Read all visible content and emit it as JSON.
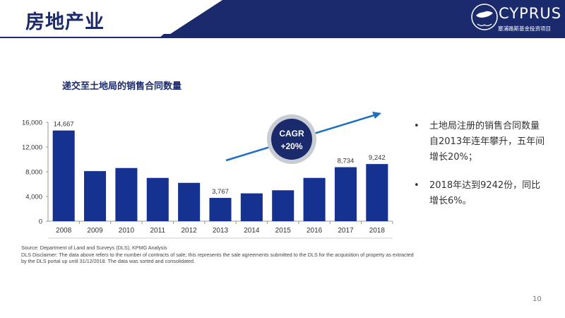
{
  "header": {
    "title": "房地产业",
    "logo_text": "CYPRUS",
    "logo_sub": "塞浦路斯基金投资项目"
  },
  "colors": {
    "bar": "#163291",
    "navy": "#1a2a6c",
    "arrow": "#1f6fbf"
  },
  "chart_title": "递交至土地局的销售合同数量",
  "chart_data": {
    "type": "bar",
    "categories": [
      "2008",
      "2009",
      "2010",
      "2011",
      "2012",
      "2013",
      "2014",
      "2015",
      "2016",
      "2017",
      "2018"
    ],
    "values": [
      14667,
      8100,
      8600,
      7000,
      6200,
      3767,
      4500,
      5000,
      7000,
      8734,
      9242
    ],
    "labels": [
      "14,667",
      "",
      "",
      "",
      "",
      "3,767",
      "",
      "",
      "",
      "8,734",
      "9,242"
    ],
    "ylim": [
      0,
      16000
    ],
    "yticks": [
      "0",
      "4,000",
      "8,000",
      "12,000",
      "16,000"
    ],
    "ytick_values": [
      0,
      4000,
      8000,
      12000,
      16000
    ],
    "grid": false,
    "annotation": {
      "line1": "CAGR",
      "line2": "+20%"
    }
  },
  "bullets": [
    "土地局注册的销售合同数量自2013年连年攀升，五年间增长20%；",
    "2018年达到9242份，同比增长6%。"
  ],
  "bullet_symbol": "•",
  "source": {
    "line1": "Source: Department of Land and Surveys (DLS), KPMG Analysis",
    "line2": "DLS Disclaimer: The data above refers to the number of contracts of sale; this represents the sale agreements submitted to the DLS for the acquisition of property as extracted by the DLS portal up until 31/12/2018. The data was sorted and consolidated."
  },
  "page_number": "10"
}
